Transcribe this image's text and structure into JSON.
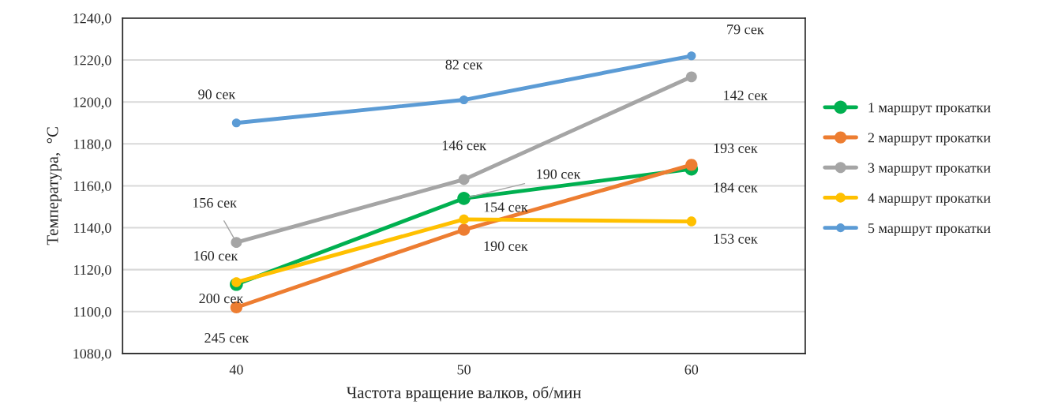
{
  "chart_data": {
    "type": "line",
    "xlabel": "Частота вращение валков, об/мин",
    "ylabel": "Температура,  °С",
    "categories": [
      "40",
      "50",
      "60"
    ],
    "series": [
      {
        "name": "1 маршрут прокатки",
        "color": "#00b050",
        "values": [
          1113,
          1154,
          1168
        ]
      },
      {
        "name": "2 маршрут прокатки",
        "color": "#ed7d31",
        "values": [
          1102,
          1139,
          1170
        ]
      },
      {
        "name": "3 маршрут прокатки",
        "color": "#a5a5a5",
        "values": [
          1133,
          1163,
          1212
        ]
      },
      {
        "name": "4 маршрут прокатки",
        "color": "#ffc000",
        "values": [
          1114,
          1144,
          1143
        ]
      },
      {
        "name": "5 маршрут прокатки",
        "color": "#5b9bd5",
        "values": [
          1190,
          1201,
          1222
        ]
      }
    ],
    "ylim": [
      1080,
      1240
    ],
    "yticks": [
      {
        "value": 1080,
        "label": "1080,0"
      },
      {
        "value": 1100,
        "label": "1100,0"
      },
      {
        "value": 1120,
        "label": "1120,0"
      },
      {
        "value": 1140,
        "label": "1140,0"
      },
      {
        "value": 1160,
        "label": "1160,0"
      },
      {
        "value": 1180,
        "label": "1180,0"
      },
      {
        "value": 1200,
        "label": "1200,0"
      },
      {
        "value": 1220,
        "label": "1220,0"
      },
      {
        "value": 1240,
        "label": "1240,0"
      }
    ],
    "annotations": [
      {
        "text": "200 сек",
        "x": "40",
        "y": 1113
      },
      {
        "text": "190 сек",
        "x": "50",
        "y": 1154
      },
      {
        "text": "184 сек",
        "x": "60",
        "y": 1168
      },
      {
        "text": "245 сек",
        "x": "40",
        "y": 1102
      },
      {
        "text": "190 сек",
        "x": "50",
        "y": 1139
      },
      {
        "text": "193 сек",
        "x": "60",
        "y": 1170
      },
      {
        "text": "156 сек",
        "x": "40",
        "y": 1133
      },
      {
        "text": "146 сек",
        "x": "50",
        "y": 1163
      },
      {
        "text": "142 сек",
        "x": "60",
        "y": 1212
      },
      {
        "text": "160 сек",
        "x": "40",
        "y": 1114
      },
      {
        "text": "154 сек",
        "x": "50",
        "y": 1144
      },
      {
        "text": "153 сек",
        "x": "60",
        "y": 1143
      },
      {
        "text": "90 сек",
        "x": "40",
        "y": 1190
      },
      {
        "text": "82 сек",
        "x": "50",
        "y": 1201
      },
      {
        "text": "79 сек",
        "x": "60",
        "y": 1222
      }
    ],
    "grid": "y",
    "legend": "right",
    "marker": "circle",
    "line_style": "solid"
  }
}
